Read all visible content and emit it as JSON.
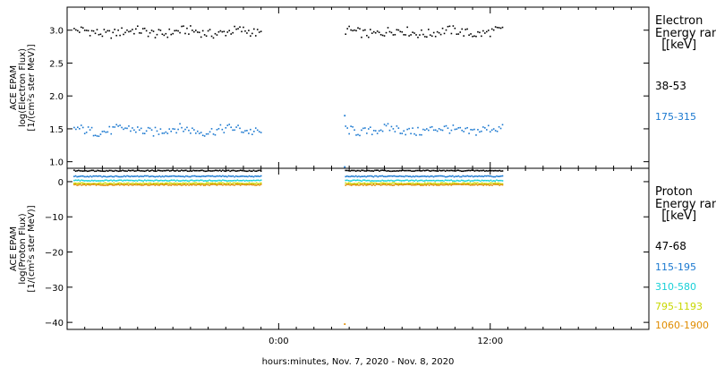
{
  "time_axis": {
    "label": "hours:minutes, Nov.  7, 2020 - Nov.  8, 2020",
    "ticks": [
      {
        "hour": 0,
        "label": "0:00"
      },
      {
        "hour": 12,
        "label": "12:00"
      }
    ],
    "range_hours": [
      -12,
      21
    ]
  },
  "colors": {
    "black": "#000000",
    "blue": "#1a78d0",
    "cyan": "#18d0d8",
    "yellow": "#c8d800",
    "orange": "#e08c00"
  },
  "chart_data": [
    {
      "type": "scatter",
      "xlabel": "",
      "ylabel_lines": [
        "ACE EPAM",
        "log(Electron Flux)",
        "[1/(cm²s ster MeV)]"
      ],
      "ylim": [
        0.9,
        3.35
      ],
      "yticks": [
        {
          "value": 1.0,
          "label": "1.0"
        },
        {
          "value": 1.5,
          "label": "1.5"
        },
        {
          "value": 2.0,
          "label": "2.0"
        },
        {
          "value": 2.5,
          "label": "2.5"
        },
        {
          "value": 3.0,
          "label": "3.0"
        }
      ],
      "legend": {
        "title_lines": [
          "Electron",
          "Energy ran",
          "[keV]"
        ],
        "placement": "right"
      },
      "segments_hours": [
        [
          -11.6,
          -1.0
        ],
        [
          3.8,
          12.7
        ]
      ],
      "series": [
        {
          "name": "38-53",
          "color": "black",
          "level": 2.97,
          "scatter": 0.07
        },
        {
          "name": "175-315",
          "color": "blue",
          "level": 1.48,
          "scatter": 0.07
        }
      ],
      "spikes": [
        {
          "x": 3.75,
          "y": 1.7,
          "color": "blue"
        },
        {
          "x": 3.75,
          "y": 0.92,
          "color": "blue"
        }
      ]
    },
    {
      "type": "scatter",
      "xlabel": "",
      "ylabel_lines": [
        "ACE EPAM",
        "log(Proton Flux)",
        "[1/(cm²s ster MeV)]"
      ],
      "ylim": [
        -42,
        3.8
      ],
      "yticks": [
        {
          "value": 0,
          "label": "0"
        },
        {
          "value": -10,
          "label": "−10"
        },
        {
          "value": -20,
          "label": "−20"
        },
        {
          "value": -30,
          "label": "−30"
        },
        {
          "value": -40,
          "label": "−40"
        }
      ],
      "legend": {
        "title_lines": [
          "Proton",
          "Energy ran",
          "[keV]"
        ],
        "placement": "right"
      },
      "segments_hours": [
        [
          -11.6,
          -1.0
        ],
        [
          3.8,
          12.7
        ]
      ],
      "series": [
        {
          "name": "47-68",
          "color": "black",
          "level": 3.1,
          "scatter": 0.15
        },
        {
          "name": "115-195",
          "color": "blue",
          "level": 1.5,
          "scatter": 0.15
        },
        {
          "name": "310-580",
          "color": "cyan",
          "level": 0.3,
          "scatter": 0.15
        },
        {
          "name": "795-1193",
          "color": "yellow",
          "level": -0.5,
          "scatter": 0.15
        },
        {
          "name": "1060-1900",
          "color": "orange",
          "level": -0.9,
          "scatter": 0.15
        }
      ],
      "spikes": [
        {
          "x": 3.75,
          "y": -40.5,
          "color": "orange"
        }
      ]
    }
  ]
}
